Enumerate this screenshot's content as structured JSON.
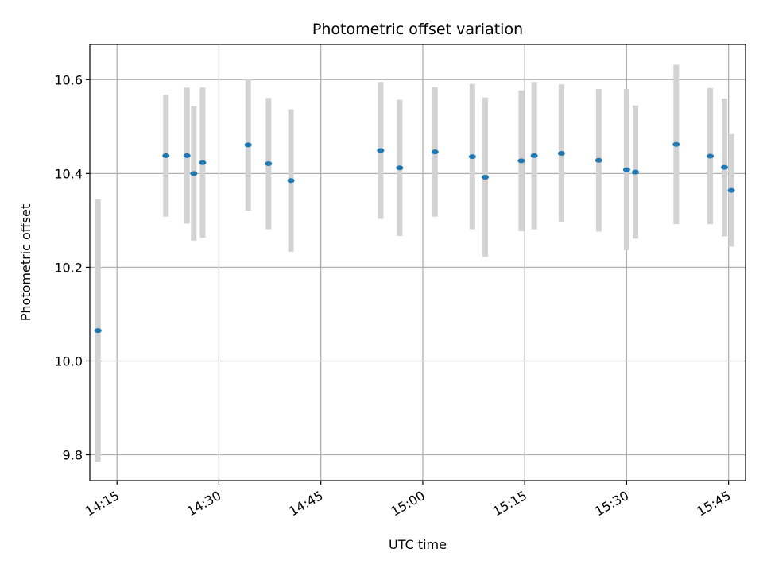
{
  "chart_data": {
    "type": "scatter",
    "title": "Photometric offset variation",
    "xlabel": "UTC time",
    "ylabel": "Photometric offset",
    "x_unit": "UTC",
    "xlim": [
      "14:11",
      "15:47.5"
    ],
    "ylim": [
      9.745,
      10.675
    ],
    "xticks": [
      "14:15",
      "14:30",
      "14:45",
      "15:00",
      "15:15",
      "15:30",
      "15:45"
    ],
    "yticks": [
      9.8,
      10.0,
      10.2,
      10.4,
      10.6
    ],
    "grid": true,
    "marker_color": "#1f77b4",
    "errorbar_color": "#d3d3d3",
    "points": [
      {
        "x": "14:12.2",
        "y": 10.065,
        "yerr": 0.28
      },
      {
        "x": "14:22.2",
        "y": 10.438,
        "yerr": 0.13
      },
      {
        "x": "14:25.3",
        "y": 10.438,
        "yerr": 0.145
      },
      {
        "x": "14:26.3",
        "y": 10.4,
        "yerr": 0.143
      },
      {
        "x": "14:27.6",
        "y": 10.423,
        "yerr": 0.16
      },
      {
        "x": "14:34.3",
        "y": 10.461,
        "yerr": 0.14
      },
      {
        "x": "14:37.3",
        "y": 10.421,
        "yerr": 0.14
      },
      {
        "x": "14:40.6",
        "y": 10.385,
        "yerr": 0.152
      },
      {
        "x": "14:53.8",
        "y": 10.449,
        "yerr": 0.146
      },
      {
        "x": "14:56.6",
        "y": 10.412,
        "yerr": 0.145
      },
      {
        "x": "15:01.8",
        "y": 10.446,
        "yerr": 0.138
      },
      {
        "x": "15:07.3",
        "y": 10.436,
        "yerr": 0.155
      },
      {
        "x": "15:09.2",
        "y": 10.392,
        "yerr": 0.17
      },
      {
        "x": "15:14.5",
        "y": 10.427,
        "yerr": 0.15
      },
      {
        "x": "15:16.4",
        "y": 10.438,
        "yerr": 0.157
      },
      {
        "x": "15:20.4",
        "y": 10.443,
        "yerr": 0.147
      },
      {
        "x": "15:25.9",
        "y": 10.428,
        "yerr": 0.152
      },
      {
        "x": "15:30.0",
        "y": 10.408,
        "yerr": 0.172
      },
      {
        "x": "15:31.3",
        "y": 10.403,
        "yerr": 0.142
      },
      {
        "x": "15:37.3",
        "y": 10.462,
        "yerr": 0.17
      },
      {
        "x": "15:42.3",
        "y": 10.437,
        "yerr": 0.145
      },
      {
        "x": "15:44.4",
        "y": 10.413,
        "yerr": 0.147
      },
      {
        "x": "15:45.4",
        "y": 10.364,
        "yerr": 0.12
      }
    ]
  }
}
